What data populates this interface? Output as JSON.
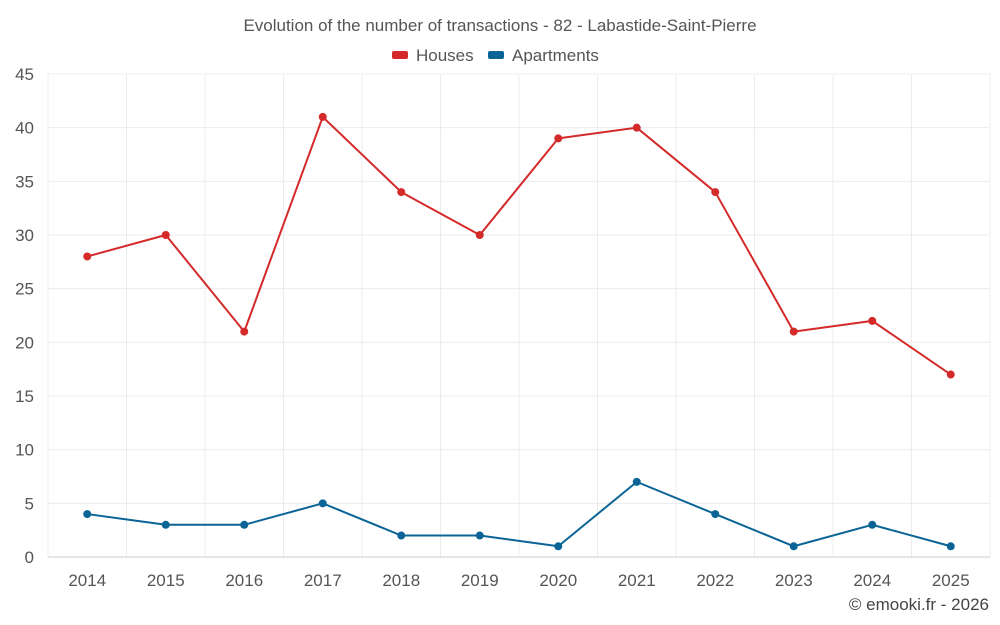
{
  "chart_data": {
    "type": "line",
    "title": "Evolution of the number of transactions - 82 - Labastide-Saint-Pierre",
    "categories": [
      "2014",
      "2015",
      "2016",
      "2017",
      "2018",
      "2019",
      "2020",
      "2021",
      "2022",
      "2023",
      "2024",
      "2025"
    ],
    "series": [
      {
        "name": "Houses",
        "color": "#d42a2a",
        "values": [
          28,
          30,
          21,
          41,
          34,
          30,
          39,
          40,
          34,
          21,
          22,
          17
        ]
      },
      {
        "name": "Apartments",
        "color": "#0b6496",
        "values": [
          4,
          3,
          3,
          5,
          2,
          2,
          1,
          7,
          4,
          1,
          3,
          1
        ]
      }
    ],
    "ylim": [
      0,
      45
    ],
    "yticks": [
      0,
      5,
      10,
      15,
      20,
      25,
      30,
      35,
      40,
      45
    ],
    "xlabel": "",
    "ylabel": "",
    "grid": true,
    "legend_position": "top-center"
  },
  "credit": "© emooki.fr - 2026"
}
